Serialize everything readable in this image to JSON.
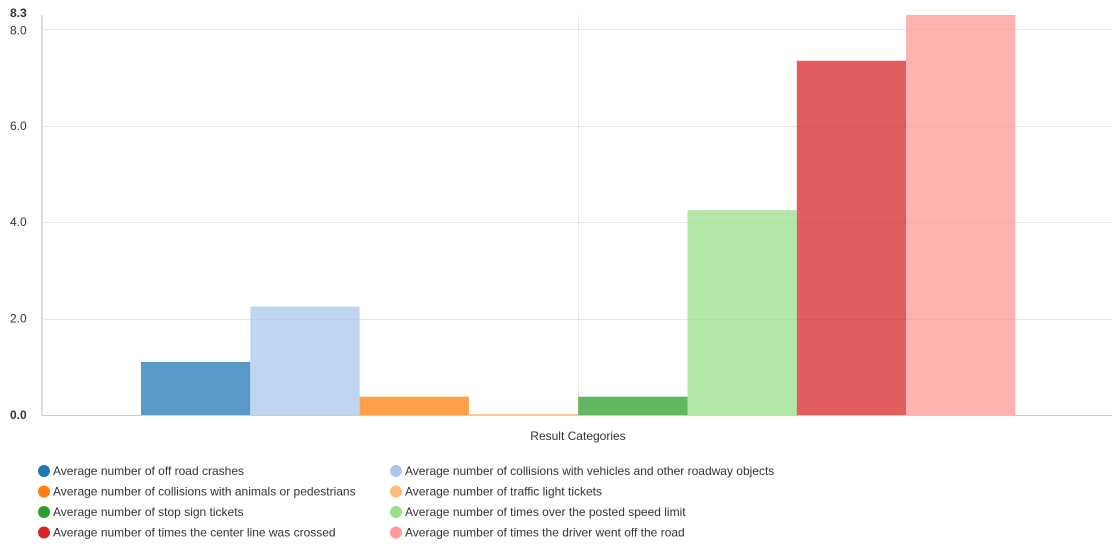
{
  "chart_data": {
    "type": "bar",
    "xlabel": "Result Categories",
    "ylabel": "",
    "ylim": [
      0,
      8.3
    ],
    "yticks": [
      {
        "value": 0,
        "label": "0.0",
        "bold": true
      },
      {
        "value": 2,
        "label": "2.0",
        "bold": false
      },
      {
        "value": 4,
        "label": "4.0",
        "bold": false
      },
      {
        "value": 6,
        "label": "6.0",
        "bold": false
      },
      {
        "value": 8,
        "label": "8.0",
        "bold": false
      },
      {
        "value": 8.3,
        "label": "8.3",
        "bold": true
      }
    ],
    "grid": true,
    "legend_position": "bottom",
    "series": [
      {
        "name": "Average number of off road crashes",
        "value": 1.1,
        "color": "#1f77b4"
      },
      {
        "name": "Average number of collisions with vehicles and other roadway objects",
        "value": 2.25,
        "color": "#aec7e8"
      },
      {
        "name": "Average number of collisions with animals or pedestrians",
        "value": 0.38,
        "color": "#ff7f0e"
      },
      {
        "name": "Average number of traffic light tickets",
        "value": 0.02,
        "color": "#ffbb78"
      },
      {
        "name": "Average number of stop sign tickets",
        "value": 0.38,
        "color": "#2ca02c"
      },
      {
        "name": "Average number of times over the posted speed limit",
        "value": 4.25,
        "color": "#98df8a"
      },
      {
        "name": "Average number of times the center line was crossed",
        "value": 7.35,
        "color": "#d62728"
      },
      {
        "name": "Average number of times the driver went off the road",
        "value": 8.3,
        "color": "#ff9896"
      }
    ]
  }
}
